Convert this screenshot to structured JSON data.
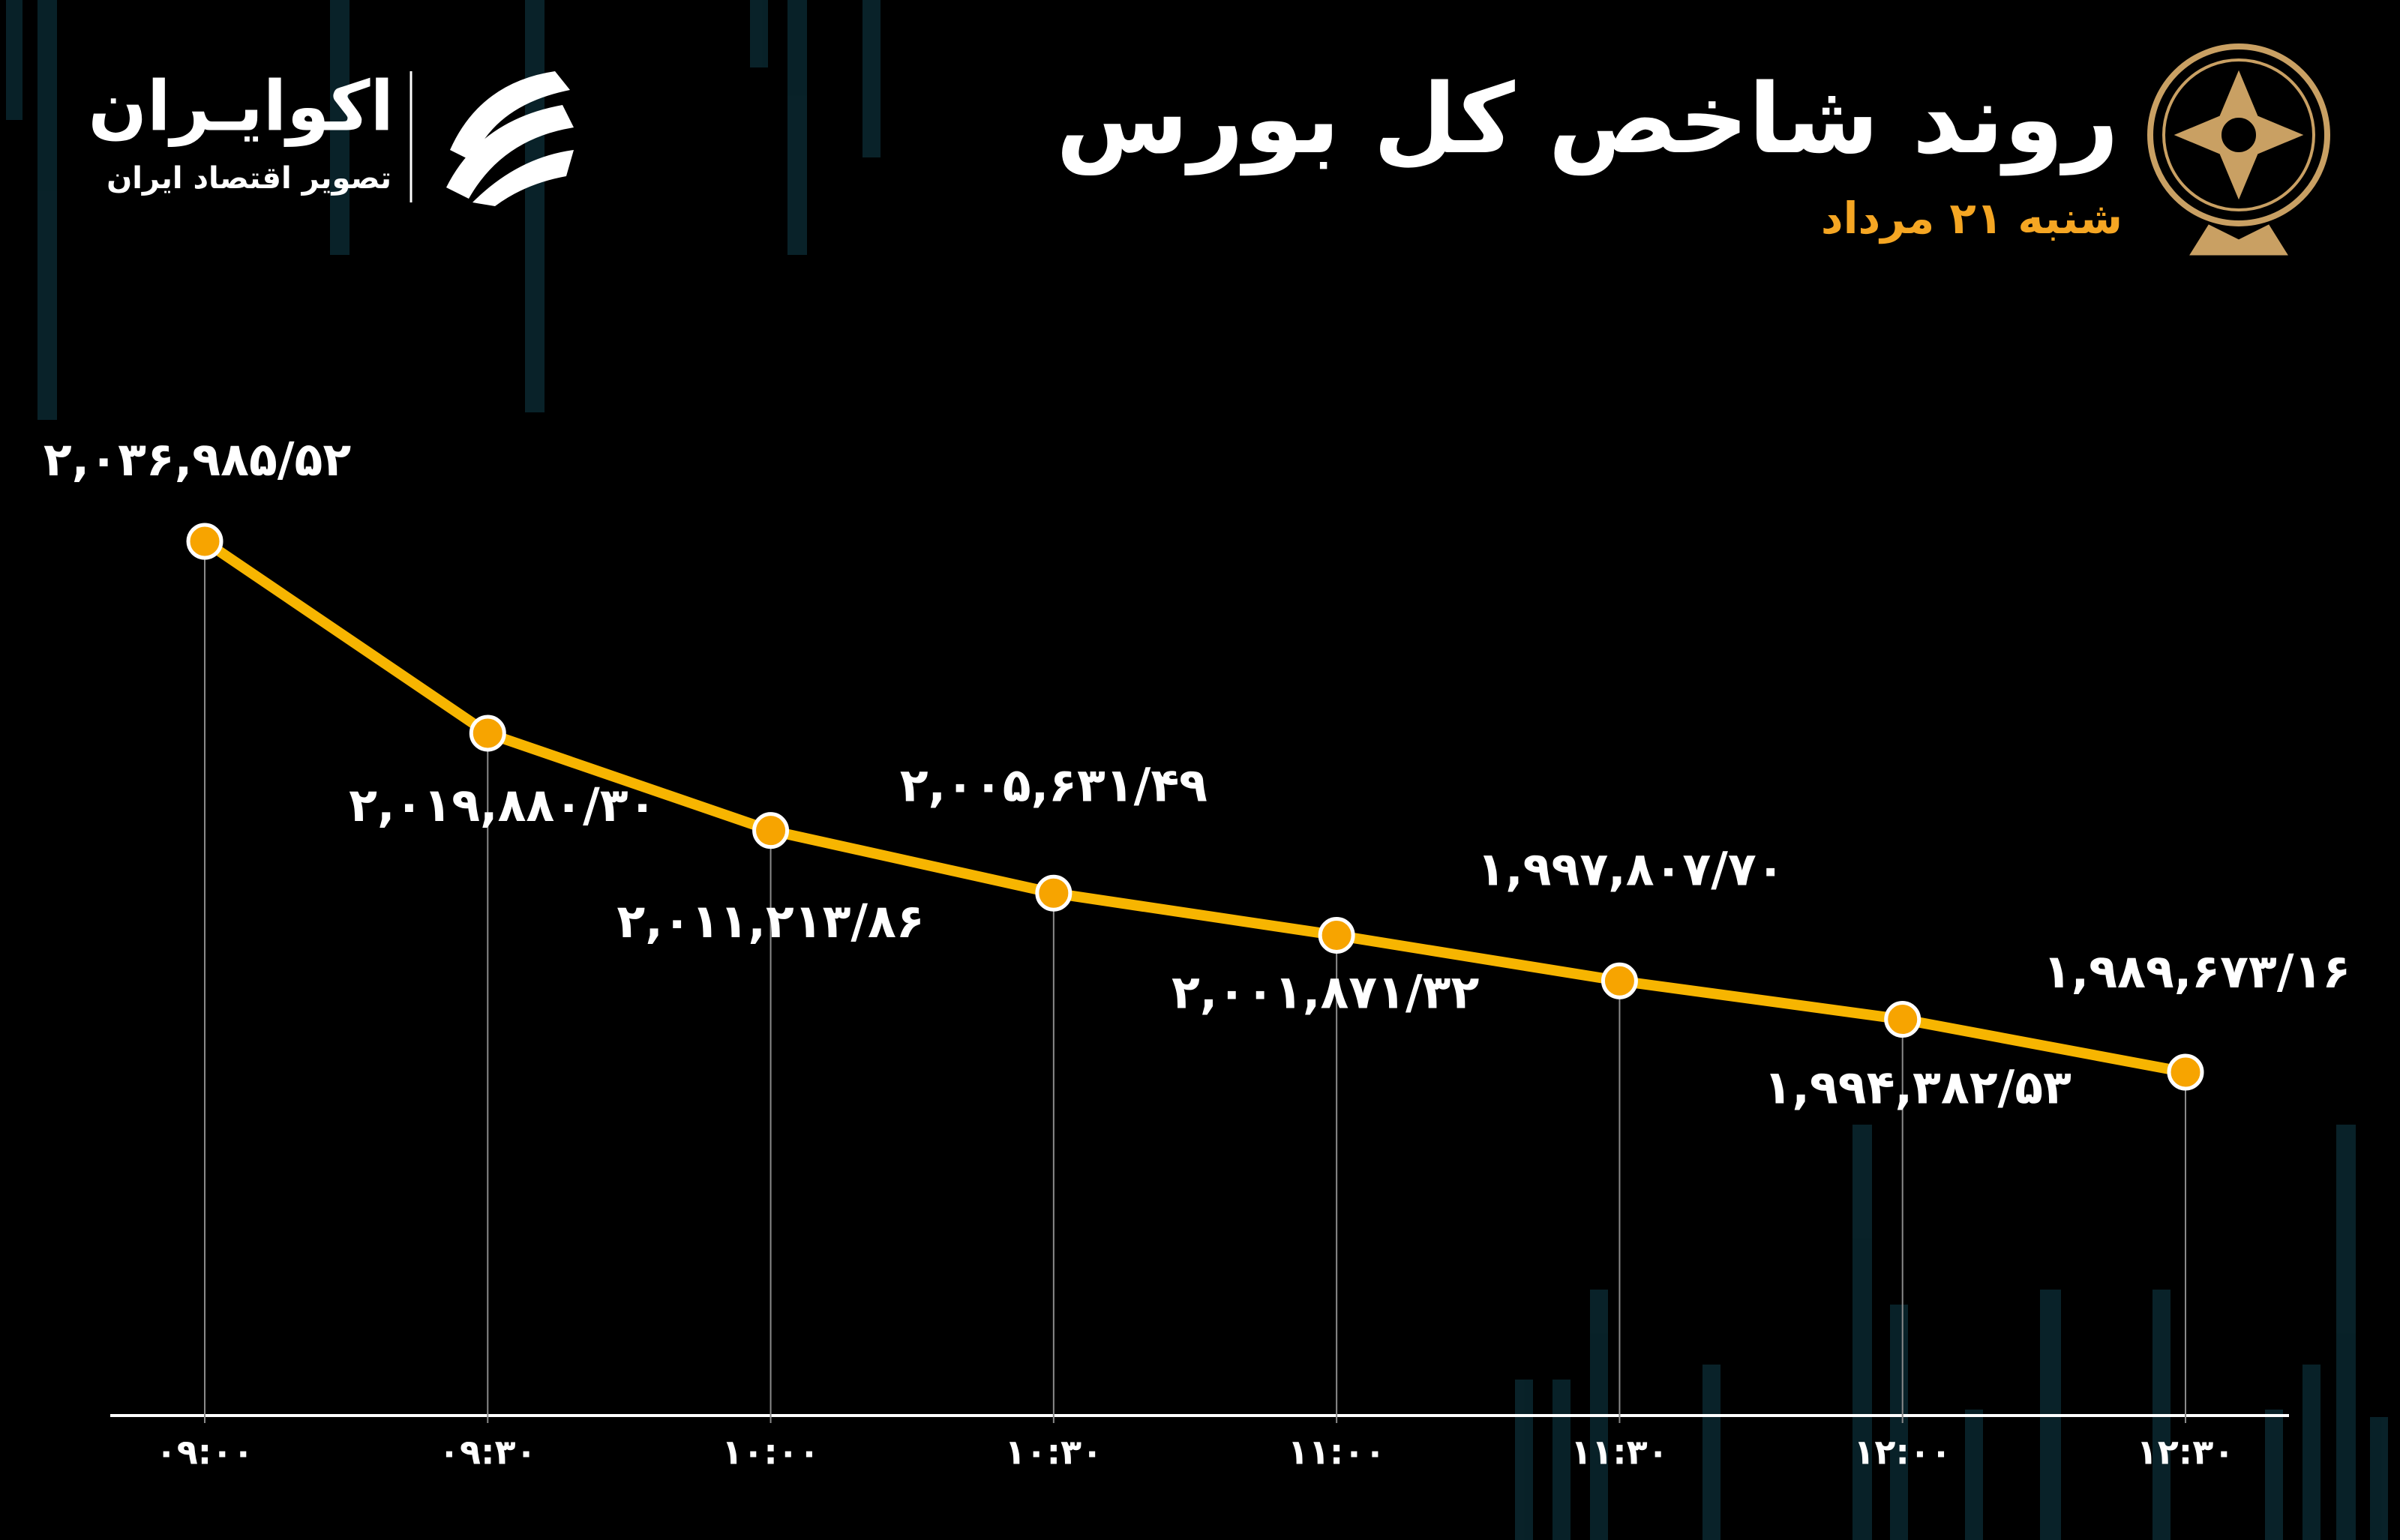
{
  "chart_data": {
    "type": "line",
    "title": "روند شاخص کل بورس",
    "subtitle": "شنبه ۲۱ مرداد",
    "categories": [
      "۰۹:۰۰",
      "۰۹:۳۰",
      "۱۰:۰۰",
      "۱۰:۳۰",
      "۱۱:۰۰",
      "۱۱:۳۰",
      "۱۲:۰۰",
      "۱۲:۳۰"
    ],
    "series": [
      {
        "color": "#f7b500",
        "values": [
          2036985.52,
          2019880.3,
          2011213.86,
          2005631.49,
          2001871.32,
          1997807.7,
          1994382.53,
          1989673.16
        ],
        "value_labels": [
          "۲,۰۳۶,۹۸۵/۵۲",
          "۲,۰۱۹,۸۸۰/۳۰",
          "۲,۰۱۱,۲۱۳/۸۶",
          "۲,۰۰۵,۶۳۱/۴۹",
          "۲,۰۰۱,۸۷۱/۳۲",
          "۱,۹۹۷,۸۰۷/۷۰",
          "۱,۹۹۴,۳۸۲/۵۳",
          "۱,۹۸۹,۶۷۳/۱۶"
        ]
      }
    ]
  },
  "brand": {
    "name": "اکوایـران",
    "tagline": "تصویر اقتصاد ایران"
  }
}
